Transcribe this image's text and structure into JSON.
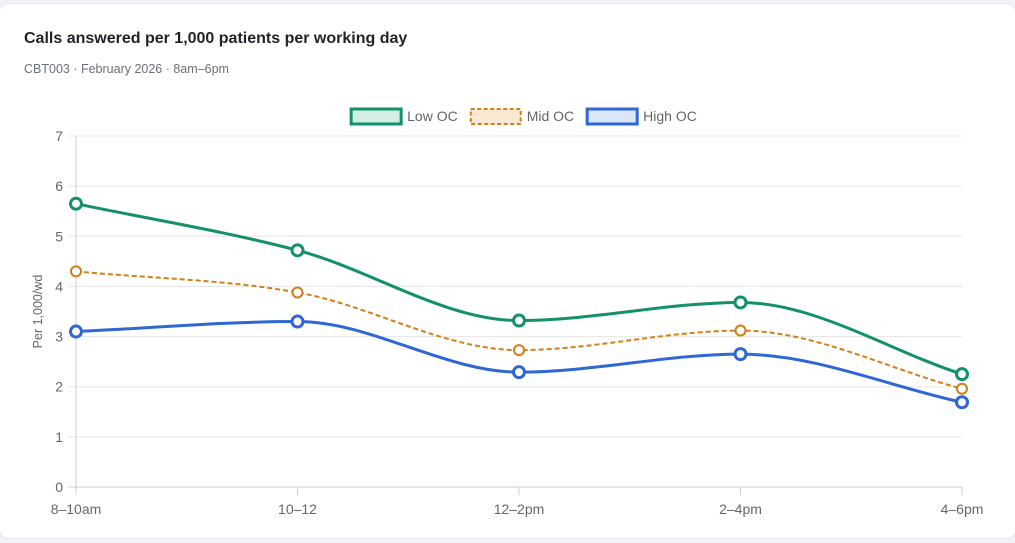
{
  "card": {
    "title": "Calls answered per 1,000 patients per working day",
    "subtitle": "CBT003 · February 2026 · 8am–6pm"
  },
  "chart_data": {
    "type": "line",
    "title": "Calls answered per 1,000 patients per working day",
    "subtitle": "CBT003 · February 2026 · 8am–6pm",
    "xlabel": "",
    "ylabel": "Per 1,000/wd",
    "categories": [
      "8–10am",
      "10–12",
      "12–2pm",
      "2–4pm",
      "4–6pm"
    ],
    "ylim": [
      0,
      7
    ],
    "yticks": [
      0,
      1,
      2,
      3,
      4,
      5,
      6,
      7
    ],
    "grid": true,
    "legend_position": "top-center",
    "series": [
      {
        "name": "Low OC",
        "values": [
          5.65,
          4.72,
          3.32,
          3.68,
          2.25
        ],
        "color": "#14906b",
        "fill": "#d3efe3",
        "dashed": false
      },
      {
        "name": "Mid OC",
        "values": [
          4.3,
          3.88,
          2.73,
          3.12,
          1.96
        ],
        "color": "#d17f16",
        "fill": "#fbe9d3",
        "dashed": true
      },
      {
        "name": "High OC",
        "values": [
          3.1,
          3.3,
          2.29,
          2.65,
          1.69
        ],
        "color": "#2f67d4",
        "fill": "#dce6f9",
        "dashed": false
      }
    ]
  }
}
